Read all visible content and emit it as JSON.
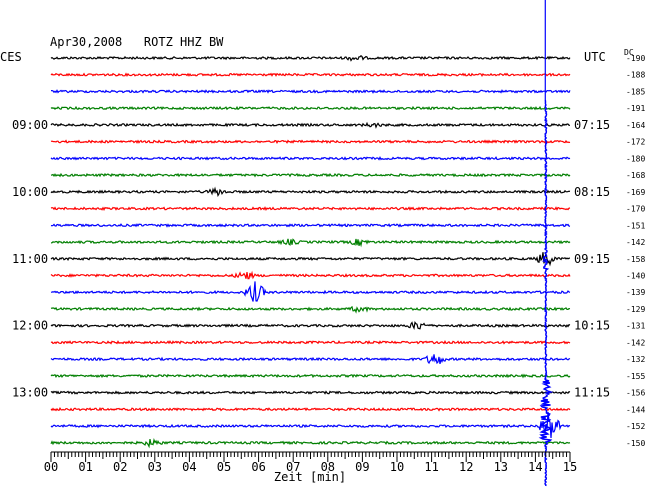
{
  "chart_data": {
    "type": "line",
    "title": "Apr30,2008   ROTZ HHZ BW",
    "xlabel": "Zeit [min]",
    "left_axis_label": "CES",
    "right_axis_label": "UTC",
    "dc_label": "DC",
    "x_range": [
      0,
      15
    ],
    "x_ticks": [
      "00",
      "01",
      "02",
      "03",
      "04",
      "05",
      "06",
      "07",
      "08",
      "09",
      "10",
      "11",
      "12",
      "13",
      "14",
      "15"
    ],
    "trace_colors": [
      "#000000",
      "#ff0000",
      "#0000ff",
      "#007f00"
    ],
    "left_time_labels": [
      {
        "trace": 4,
        "label": "09:00"
      },
      {
        "trace": 8,
        "label": "10:00"
      },
      {
        "trace": 12,
        "label": "11:00"
      },
      {
        "trace": 16,
        "label": "12:00"
      },
      {
        "trace": 20,
        "label": "13:00"
      }
    ],
    "right_time_labels": [
      {
        "trace": 4,
        "label": "07:15"
      },
      {
        "trace": 8,
        "label": "08:15"
      },
      {
        "trace": 12,
        "label": "09:15"
      },
      {
        "trace": 16,
        "label": "10:15"
      },
      {
        "trace": 20,
        "label": "11:15"
      }
    ],
    "dc_values": [
      "-190",
      "-188",
      "-185",
      "-191",
      "-164",
      "-172",
      "-180",
      "-168",
      "-169",
      "-170",
      "-151",
      "-142",
      "-158",
      "-140",
      "-139",
      "-129",
      "-131",
      "-142",
      "-132",
      "-155",
      "-156",
      "-144",
      "-152",
      "-150"
    ],
    "events": [
      {
        "trace": 0,
        "x": 8.8,
        "amp": 0.3
      },
      {
        "trace": 4,
        "x": 9.3,
        "amp": 0.2
      },
      {
        "trace": 8,
        "x": 4.8,
        "amp": 0.4
      },
      {
        "trace": 11,
        "x": 6.9,
        "amp": 0.3
      },
      {
        "trace": 11,
        "x": 8.9,
        "amp": 0.35
      },
      {
        "trace": 12,
        "x": 14.3,
        "amp": 0.9
      },
      {
        "trace": 13,
        "x": 5.6,
        "amp": 0.5
      },
      {
        "trace": 14,
        "x": 5.9,
        "amp": 1.3
      },
      {
        "trace": 15,
        "x": 8.9,
        "amp": 0.3
      },
      {
        "trace": 16,
        "x": 10.6,
        "amp": 0.5
      },
      {
        "trace": 18,
        "x": 11.1,
        "amp": 0.8
      },
      {
        "trace": 22,
        "x": 14.4,
        "amp": 2.2
      },
      {
        "trace": 23,
        "x": 2.9,
        "amp": 0.4
      }
    ],
    "spike_x": 14.3
  }
}
